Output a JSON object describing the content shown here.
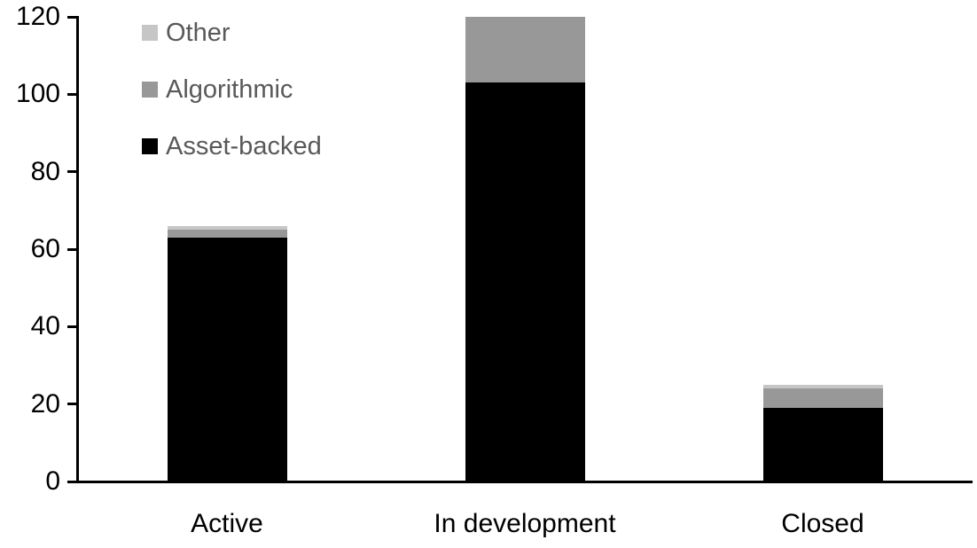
{
  "chart_data": {
    "type": "bar",
    "stacked": true,
    "title": "",
    "xlabel": "",
    "ylabel": "",
    "categories": [
      "Active",
      "In development",
      "Closed"
    ],
    "series": [
      {
        "name": "Asset-backed",
        "color": "#000000",
        "values": [
          63,
          103,
          19
        ]
      },
      {
        "name": "Algorithmic",
        "color": "#989898",
        "values": [
          2,
          17,
          5
        ]
      },
      {
        "name": "Other",
        "color": "#c6c6c6",
        "values": [
          1,
          0,
          1
        ]
      }
    ],
    "totals": [
      66,
      120,
      25
    ],
    "ylim": [
      0,
      120
    ],
    "yticks": [
      0,
      20,
      40,
      60,
      80,
      100,
      120
    ],
    "grid": false,
    "legend_position": "top-left",
    "legend_order_top_to_bottom": [
      "Other",
      "Algorithmic",
      "Asset-backed"
    ],
    "legend_text_color": "#595959",
    "axis_color": "#000000",
    "background_color": "#ffffff"
  }
}
